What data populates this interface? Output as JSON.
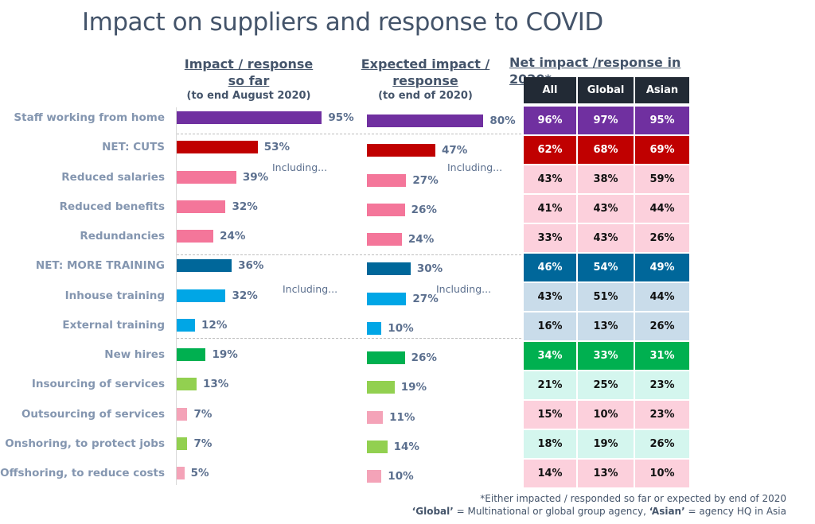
{
  "title": "Impact on suppliers and response to COVID",
  "chart_data": {
    "type": "bar",
    "orientation": "horizontal",
    "categories": [
      "Staff working from home",
      "NET: CUTS",
      "Reduced salaries",
      "Reduced benefits",
      "Redundancies",
      "NET: MORE TRAINING",
      "Inhouse training",
      "External training",
      "New hires",
      "Insourcing of services",
      "Outsourcing of services",
      "Onshoring, to protect jobs",
      "Offshoring, to reduce costs"
    ],
    "series": [
      {
        "name": "Impact / response so far",
        "subtitle": "(to end August 2020)",
        "values": [
          95,
          53,
          39,
          32,
          24,
          36,
          32,
          12,
          19,
          13,
          7,
          7,
          5
        ]
      },
      {
        "name": "Expected impact / response",
        "subtitle": "(to end of 2020)",
        "values": [
          80,
          47,
          27,
          26,
          24,
          30,
          27,
          10,
          26,
          19,
          11,
          14,
          10
        ]
      }
    ],
    "bar_colors": [
      "#7030a0",
      "#c00000",
      "#f4769a",
      "#f4769a",
      "#f4769a",
      "#00679a",
      "#00a6e6",
      "#00a6e6",
      "#00b050",
      "#92d050",
      "#f4a3b8",
      "#92d050",
      "#f4a3b8"
    ],
    "annotation": "Including...",
    "table": {
      "title": "Net impact /response in 2020*",
      "columns": [
        "All",
        "Global",
        "Asian"
      ],
      "rows": [
        [
          "96%",
          "97%",
          "95%"
        ],
        [
          "62%",
          "68%",
          "69%"
        ],
        [
          "43%",
          "38%",
          "59%"
        ],
        [
          "41%",
          "43%",
          "44%"
        ],
        [
          "33%",
          "43%",
          "26%"
        ],
        [
          "46%",
          "54%",
          "49%"
        ],
        [
          "43%",
          "51%",
          "44%"
        ],
        [
          "16%",
          "13%",
          "26%"
        ],
        [
          "34%",
          "33%",
          "31%"
        ],
        [
          "21%",
          "25%",
          "23%"
        ],
        [
          "15%",
          "10%",
          "23%"
        ],
        [
          "18%",
          "19%",
          "26%"
        ],
        [
          "14%",
          "13%",
          "10%"
        ]
      ],
      "row_colors": [
        "#7030a0",
        "#c00000",
        "#fcd0dc",
        "#fcd0dc",
        "#fcd0dc",
        "#00679a",
        "#c9dcea",
        "#c9dcea",
        "#00b050",
        "#d4f6ee",
        "#fcd0dc",
        "#d4f6ee",
        "#fcd0dc"
      ],
      "header_color": "#222a35"
    },
    "xlim": [
      0,
      100
    ]
  },
  "footnotes": {
    "line1": "*Either impacted / responded so far or expected by end of 2020",
    "line2_global": "‘Global’",
    "line2_a": " = Multinational or global group agency, ",
    "line2_asian": "‘Asian’",
    "line2_b": " = agency HQ in Asia"
  }
}
